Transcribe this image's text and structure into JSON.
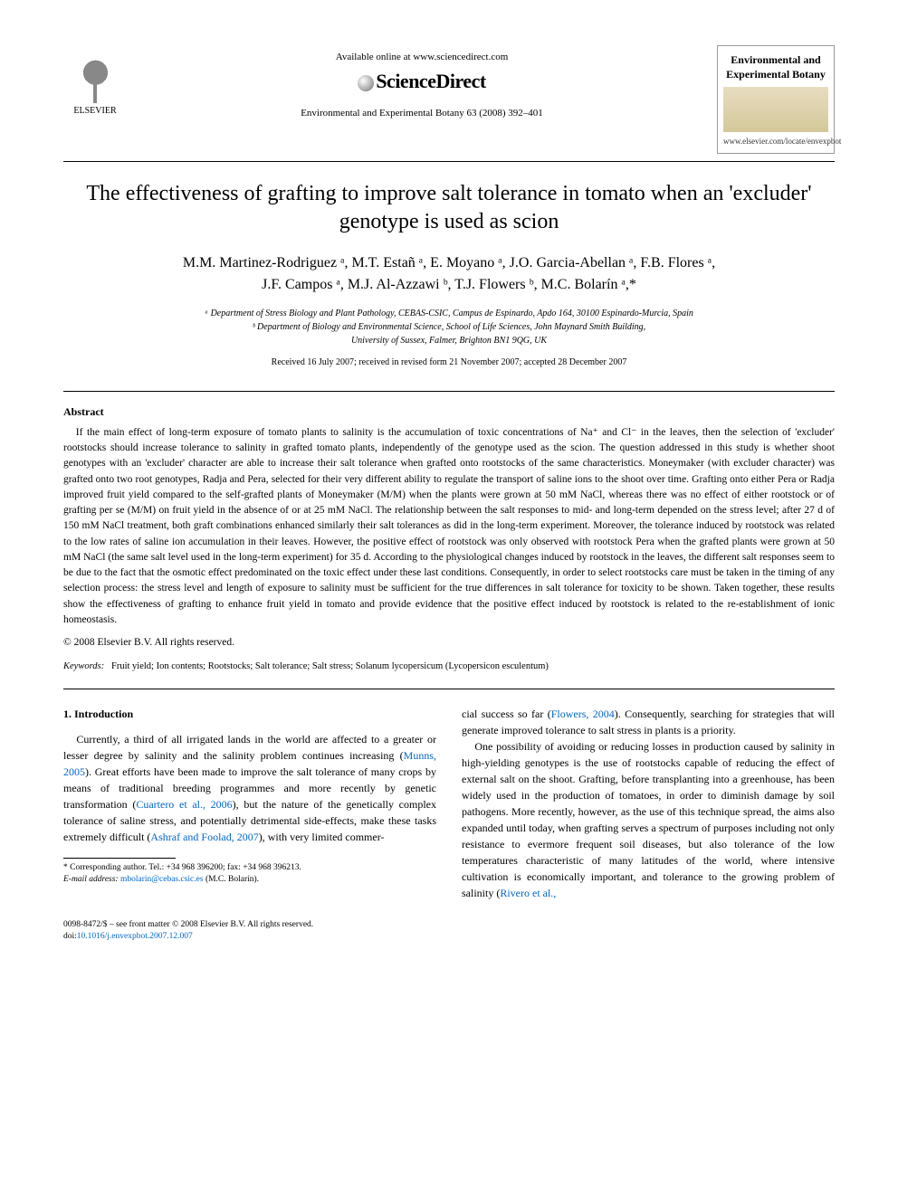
{
  "header": {
    "elsevier_label": "ELSEVIER",
    "available_online": "Available online at www.sciencedirect.com",
    "sd_brand": "ScienceDirect",
    "journal_ref": "Environmental and Experimental Botany 63 (2008) 392–401",
    "journal_box_title": "Environmental and Experimental Botany",
    "journal_url": "www.elsevier.com/locate/envexpbot"
  },
  "article": {
    "title": "The effectiveness of grafting to improve salt tolerance in tomato when an 'excluder' genotype is used as scion",
    "authors_line1": "M.M. Martinez-Rodriguez ᵃ, M.T. Estañ ᵃ, E. Moyano ᵃ, J.O. Garcia-Abellan ᵃ, F.B. Flores ᵃ,",
    "authors_line2": "J.F. Campos ᵃ, M.J. Al-Azzawi ᵇ, T.J. Flowers ᵇ, M.C. Bolarín ᵃ,*",
    "affil_a": "ᵃ Department of Stress Biology and Plant Pathology, CEBAS-CSIC, Campus de Espinardo, Apdo 164, 30100 Espinardo-Murcia, Spain",
    "affil_b": "ᵇ Department of Biology and Environmental Science, School of Life Sciences, John Maynard Smith Building,",
    "affil_b2": "University of Sussex, Falmer, Brighton BN1 9QG, UK",
    "dates": "Received 16 July 2007; received in revised form 21 November 2007; accepted 28 December 2007"
  },
  "abstract": {
    "heading": "Abstract",
    "body": "If the main effect of long-term exposure of tomato plants to salinity is the accumulation of toxic concentrations of Na⁺ and Cl⁻ in the leaves, then the selection of 'excluder' rootstocks should increase tolerance to salinity in grafted tomato plants, independently of the genotype used as the scion. The question addressed in this study is whether shoot genotypes with an 'excluder' character are able to increase their salt tolerance when grafted onto rootstocks of the same characteristics. Moneymaker (with excluder character) was grafted onto two root genotypes, Radja and Pera, selected for their very different ability to regulate the transport of saline ions to the shoot over time. Grafting onto either Pera or Radja improved fruit yield compared to the self-grafted plants of Moneymaker (M/M) when the plants were grown at 50 mM NaCl, whereas there was no effect of either rootstock or of grafting per se (M/M) on fruit yield in the absence of or at 25 mM NaCl. The relationship between the salt responses to mid- and long-term depended on the stress level; after 27 d of 150 mM NaCl treatment, both graft combinations enhanced similarly their salt tolerances as did in the long-term experiment. Moreover, the tolerance induced by rootstock was related to the low rates of saline ion accumulation in their leaves. However, the positive effect of rootstock was only observed with rootstock Pera when the grafted plants were grown at 50 mM NaCl (the same salt level used in the long-term experiment) for 35 d. According to the physiological changes induced by rootstock in the leaves, the different salt responses seem to be due to the fact that the osmotic effect predominated on the toxic effect under these last conditions. Consequently, in order to select rootstocks care must be taken in the timing of any selection process: the stress level and length of exposure to salinity must be sufficient for the true differences in salt tolerance for toxicity to be shown. Taken together, these results show the effectiveness of grafting to enhance fruit yield in tomato and provide evidence that the positive effect induced by rootstock is related to the re-establishment of ionic homeostasis.",
    "copyright": "© 2008 Elsevier B.V. All rights reserved."
  },
  "keywords": {
    "label": "Keywords:",
    "text": "Fruit yield; Ion contents; Rootstocks; Salt tolerance; Salt stress; Solanum lycopersicum (Lycopersicon esculentum)"
  },
  "intro": {
    "heading": "1.  Introduction",
    "col1_p1_a": "Currently, a third of all irrigated lands in the world are affected to a greater or lesser degree by salinity and the salinity problem continues increasing (",
    "col1_cite1": "Munns, 2005",
    "col1_p1_b": "). Great efforts have been made to improve the salt tolerance of many crops by means of traditional breeding programmes and more recently by genetic transformation (",
    "col1_cite2": "Cuartero et al., 2006",
    "col1_p1_c": "), but the nature of the genetically complex tolerance of saline stress, and potentially detrimental side-effects, make these tasks extremely difficult (",
    "col1_cite3": "Ashraf and Foolad, 2007",
    "col1_p1_d": "), with very limited commer-",
    "col2_p1_a": "cial success so far (",
    "col2_cite1": "Flowers, 2004",
    "col2_p1_b": "). Consequently, searching for strategies that will generate improved tolerance to salt stress in plants is a priority.",
    "col2_p2_a": "One possibility of avoiding or reducing losses in production caused by salinity in high-yielding genotypes is the use of rootstocks capable of reducing the effect of external salt on the shoot. Grafting, before transplanting into a greenhouse, has been widely used in the production of tomatoes, in order to diminish damage by soil pathogens. More recently, however, as the use of this technique spread, the aims also expanded until today, when grafting serves a spectrum of purposes including not only resistance to evermore frequent soil diseases, but also tolerance of the low temperatures characteristic of many latitudes of the world, where intensive cultivation is economically important, and tolerance to the growing problem of salinity (",
    "col2_cite2": "Rivero et al.,"
  },
  "footnote": {
    "corr": "* Corresponding author. Tel.: +34 968 396200; fax: +34 968 396213.",
    "email_label": "E-mail address:",
    "email": "mbolarin@cebas.csic.es",
    "email_person": "(M.C. Bolarín)."
  },
  "footer": {
    "line1": "0098-8472/$ – see front matter © 2008 Elsevier B.V. All rights reserved.",
    "doi_label": "doi:",
    "doi": "10.1016/j.envexpbot.2007.12.007"
  },
  "colors": {
    "link": "#0066cc",
    "text": "#000000",
    "bg": "#ffffff"
  }
}
